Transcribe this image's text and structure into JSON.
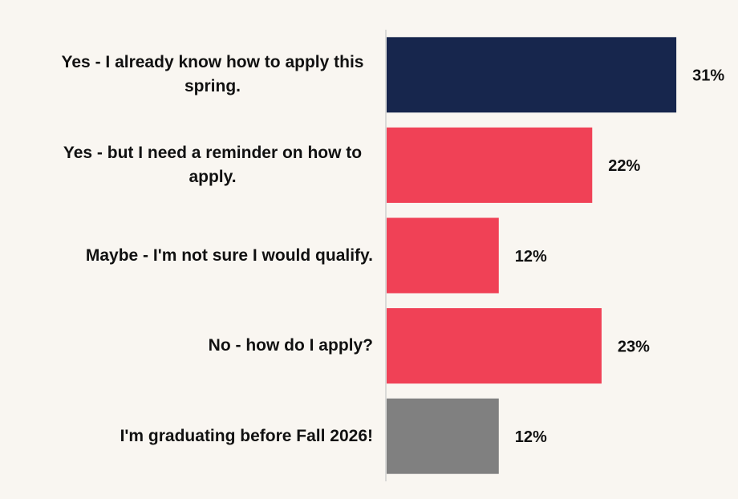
{
  "chart_data": {
    "type": "bar",
    "orientation": "horizontal",
    "categories": [
      "Yes - I already know how to apply this spring.",
      "Yes - but I need a reminder on how to apply.",
      "Maybe - I'm not sure I would qualify.",
      "No - how do I apply?",
      "I'm graduating before Fall 2026!"
    ],
    "values": [
      31,
      22,
      12,
      23,
      12
    ],
    "value_labels": [
      "31%",
      "22%",
      "12%",
      "23%",
      "12%"
    ],
    "colors": [
      "#17264d",
      "#f04156",
      "#f04156",
      "#f04156",
      "#808080"
    ],
    "xlim": [
      0,
      37
    ]
  }
}
